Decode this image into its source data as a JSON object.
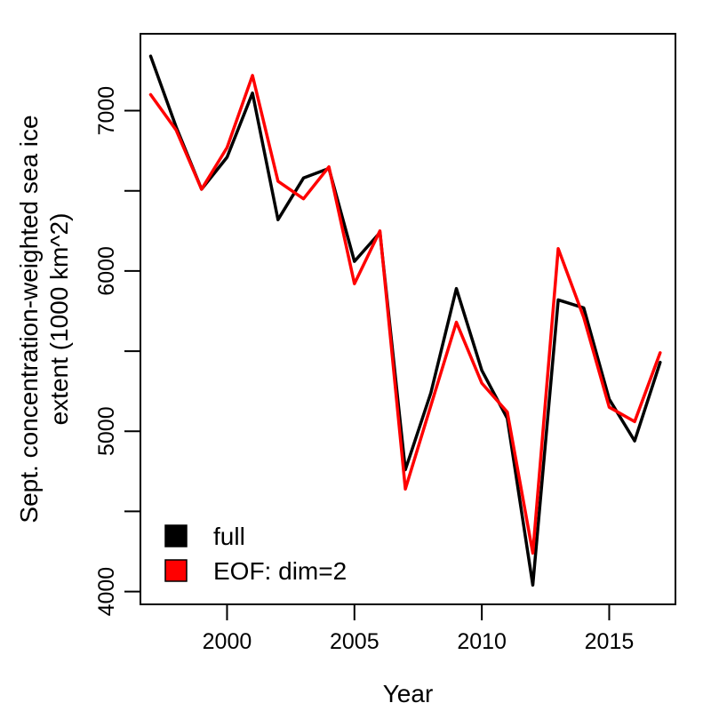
{
  "chart_data": {
    "type": "line",
    "xlabel": "Year",
    "ylabel_lines": [
      "Sept. concentration-weighted sea ice",
      "extent (1000 km^2)"
    ],
    "xlim": [
      1996.6,
      2017.6
    ],
    "ylim": [
      3920,
      7480
    ],
    "x_ticks": [
      2000,
      2005,
      2010,
      2015
    ],
    "y_ticks": [
      4000,
      4500,
      5000,
      5500,
      6000,
      6500,
      7000
    ],
    "y_tick_labels": [
      "4000",
      "",
      "5000",
      "",
      "6000",
      "",
      "7000"
    ],
    "x": [
      1997,
      1998,
      1999,
      2000,
      2001,
      2002,
      2003,
      2004,
      2005,
      2006,
      2007,
      2008,
      2009,
      2010,
      2011,
      2012,
      2013,
      2014,
      2015,
      2016,
      2017
    ],
    "series": [
      {
        "name": "full",
        "color": "#000000",
        "values": [
          7340,
          6900,
          6510,
          6710,
          7110,
          6320,
          6580,
          6640,
          6060,
          6240,
          4760,
          5240,
          5890,
          5380,
          5080,
          4040,
          5820,
          5770,
          5200,
          4940,
          5430
        ]
      },
      {
        "name": "EOF: dim=2",
        "color": "#ff0000",
        "values": [
          7100,
          6880,
          6510,
          6770,
          7220,
          6560,
          6450,
          6650,
          5920,
          6250,
          4640,
          5160,
          5680,
          5300,
          5120,
          4240,
          6140,
          5710,
          5150,
          5060,
          5490
        ]
      }
    ],
    "legend_position": "bottom-left",
    "grid": false
  }
}
